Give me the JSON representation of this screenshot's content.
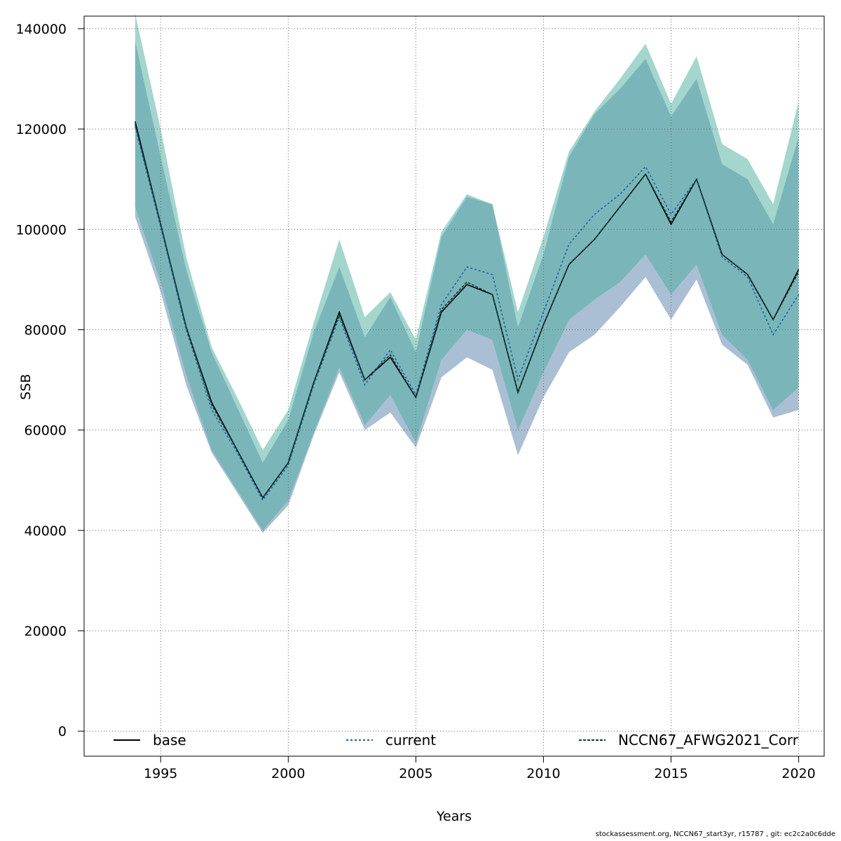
{
  "chart_data": {
    "type": "line",
    "xlabel": "Years",
    "ylabel": "SSB",
    "xlim": [
      1992,
      2021
    ],
    "ylim": [
      -5000,
      142500
    ],
    "xticks": [
      1995,
      2000,
      2005,
      2010,
      2015,
      2020
    ],
    "yticks": [
      0,
      20000,
      40000,
      60000,
      80000,
      100000,
      120000,
      140000
    ],
    "grid": true,
    "x": [
      1994,
      1995,
      1996,
      1997,
      1998,
      1999,
      2000,
      2001,
      2002,
      2003,
      2004,
      2005,
      2006,
      2007,
      2008,
      2009,
      2010,
      2011,
      2012,
      2013,
      2014,
      2015,
      2016,
      2017,
      2018,
      2019,
      2020
    ],
    "series": [
      {
        "name": "base",
        "style": "solid",
        "color": "#000000",
        "values": [
          121500,
          101000,
          80500,
          65500,
          56000,
          46500,
          53500,
          69500,
          83500,
          70000,
          74500,
          66500,
          83500,
          89000,
          87000,
          67500,
          81000,
          93000,
          98000,
          104500,
          111000,
          101000,
          110000,
          95000,
          91000,
          82000,
          92000
        ],
        "ci_lower": [
          102500,
          87500,
          69000,
          55500,
          47500,
          39500,
          45000,
          59000,
          71500,
          60000,
          63500,
          56500,
          70500,
          74500,
          72000,
          55000,
          66500,
          75500,
          79000,
          84500,
          90500,
          82000,
          90000,
          77000,
          73000,
          62500,
          64000
        ],
        "ci_upper": [
          137500,
          114500,
          92000,
          75500,
          64500,
          53500,
          62000,
          79500,
          92500,
          78500,
          86500,
          75500,
          98500,
          106500,
          105000,
          80500,
          95000,
          114500,
          123000,
          128000,
          134000,
          122500,
          130000,
          113000,
          110000,
          101000,
          118500
        ],
        "fill": "#9bb4cc"
      },
      {
        "name": "current",
        "style": "dotted",
        "color": "#1f5fa0",
        "values": [
          120500,
          100500,
          80000,
          64000,
          55500,
          46000,
          53000,
          69000,
          82500,
          69000,
          76000,
          67000,
          85000,
          92500,
          91000,
          70000,
          83500,
          97000,
          103000,
          107000,
          112500,
          103000,
          110000,
          94500,
          90500,
          79000,
          87000
        ]
      },
      {
        "name": "NCCN67_AFWG2021_Corr",
        "style": "dashed",
        "color": "#0f3d3d",
        "values": [
          121000,
          101000,
          80500,
          65000,
          56000,
          46500,
          53500,
          69500,
          83000,
          70000,
          75000,
          66500,
          84000,
          89500,
          87000,
          67500,
          81000,
          93000,
          98000,
          104500,
          111000,
          101500,
          110000,
          95000,
          91000,
          82000,
          91500
        ],
        "ci_lower": [
          104500,
          89500,
          71000,
          56000,
          48000,
          40000,
          46000,
          59500,
          72500,
          61000,
          67000,
          57500,
          74000,
          80000,
          78000,
          60000,
          71500,
          82000,
          86000,
          89500,
          95000,
          87000,
          93000,
          79000,
          74000,
          64000,
          68500
        ],
        "ci_upper": [
          143000,
          120000,
          94500,
          76500,
          66500,
          56000,
          64000,
          81500,
          98000,
          82500,
          87500,
          78000,
          99500,
          107000,
          105000,
          83500,
          98500,
          115500,
          123500,
          130000,
          137000,
          125000,
          134500,
          117000,
          114000,
          105000,
          125500
        ],
        "fill": "#49ad9d"
      }
    ],
    "legend": [
      "base",
      "current",
      "NCCN67_AFWG2021_Corr"
    ],
    "legend_position": "bottom"
  },
  "footer": "stockassessment.org, NCCN67_start3yr, r15787 , git: ec2c2a0c6dde"
}
